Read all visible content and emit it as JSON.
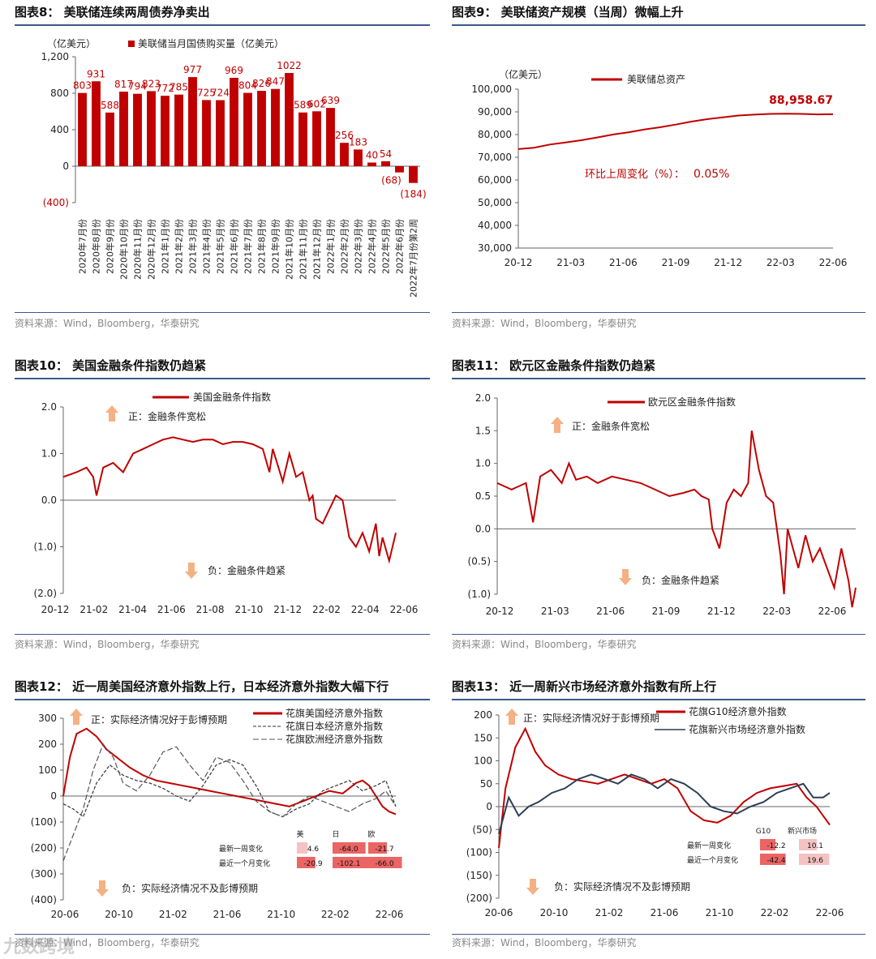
{
  "source": "资料来源：Wind，Bloomberg，华泰研究",
  "watermark": "九数跨境",
  "chart_data": [
    {
      "id": "c8",
      "type": "bar",
      "title": "图表8：  美联储连续两周债券净卖出",
      "ylabel": "（亿美元）",
      "legend": [
        "美联储当月国债购买量（亿美元）"
      ],
      "ylim": [
        -400,
        1200
      ],
      "yticks": [
        "1,200",
        "800",
        "400",
        "0",
        "(400)"
      ],
      "categories": [
        "2020年7月份",
        "2020年8月份",
        "2020年9月份",
        "2020年10月份",
        "2020年11月份",
        "2020年12月份",
        "2021年1月份",
        "2021年2月份",
        "2021年3月份",
        "2021年4月份",
        "2021年5月份",
        "2021年6月份",
        "2021年7月份",
        "2021年8月份",
        "2021年9月份",
        "2021年10月份",
        "2021年11月份",
        "2021年12月份",
        "2022年1月份",
        "2022年2月份",
        "2022年3月份",
        "2022年4月份",
        "2022年5月份",
        "2022年6月份",
        "2022年7月份第2周"
      ],
      "values": [
        803,
        931,
        588,
        817,
        794,
        823,
        772,
        785,
        977,
        725,
        724,
        969,
        804,
        826,
        847,
        1022,
        589,
        602,
        639,
        256,
        183,
        40,
        54,
        -68,
        -184
      ],
      "labels": [
        "803",
        "931",
        "588",
        "817",
        "794",
        "823",
        "772",
        "785",
        "977",
        "725",
        "724",
        "969",
        "804",
        "826",
        "847",
        "1022",
        "589",
        "602",
        "639",
        "256",
        "183",
        "40",
        "54",
        "(68)",
        "(184)"
      ],
      "color": "#c00000"
    },
    {
      "id": "c9",
      "type": "line",
      "title": "图表9：  美联储资产规模（当周）微幅上升",
      "ylabel": "（亿美元）",
      "legend": [
        "美联储总资产"
      ],
      "ylim": [
        30000,
        100000
      ],
      "yticks": [
        "100,000",
        "90,000",
        "80,000",
        "70,000",
        "60,000",
        "50,000",
        "40,000",
        "30,000"
      ],
      "xticks": [
        "20-12",
        "21-03",
        "21-06",
        "21-09",
        "21-12",
        "22-03",
        "22-06"
      ],
      "annotation": "环比上周变化（%）：",
      "annotation_value": "0.05%",
      "last_label": "88,958.67",
      "series": [
        {
          "name": "美联储总资产",
          "x": [
            0,
            0.05,
            0.1,
            0.15,
            0.2,
            0.25,
            0.3,
            0.35,
            0.4,
            0.45,
            0.5,
            0.55,
            0.6,
            0.65,
            0.7,
            0.75,
            0.8,
            0.85,
            0.9,
            0.95,
            1
          ],
          "values": [
            73600,
            74200,
            75600,
            76500,
            77500,
            78700,
            80000,
            81000,
            82200,
            83200,
            84400,
            85700,
            86800,
            87600,
            88400,
            88800,
            89100,
            89200,
            89100,
            88900,
            88959
          ]
        }
      ],
      "color": "#c00000"
    },
    {
      "id": "c10",
      "type": "line",
      "title": "图表10：  美国金融条件指数仍趋紧",
      "legend": [
        "美国金融条件指数"
      ],
      "ylim": [
        -2,
        2
      ],
      "yticks": [
        "2.0",
        "1.0",
        "0.0",
        "(1.0)",
        "(2.0)"
      ],
      "xticks": [
        "20-12",
        "21-02",
        "21-04",
        "21-06",
        "21-08",
        "21-10",
        "21-12",
        "22-02",
        "22-04",
        "22-06"
      ],
      "up_note": "正：金融条件宽松",
      "down_note": "负：金融条件趋紧",
      "series": [
        {
          "name": "美国金融条件指数",
          "x": [
            0,
            0.04,
            0.07,
            0.09,
            0.1,
            0.12,
            0.15,
            0.18,
            0.21,
            0.24,
            0.27,
            0.3,
            0.33,
            0.36,
            0.39,
            0.42,
            0.45,
            0.48,
            0.51,
            0.54,
            0.57,
            0.6,
            0.62,
            0.63,
            0.66,
            0.68,
            0.7,
            0.72,
            0.74,
            0.75,
            0.76,
            0.78,
            0.8,
            0.82,
            0.84,
            0.86,
            0.88,
            0.9,
            0.92,
            0.94,
            0.95,
            0.96,
            0.98,
            1
          ],
          "values": [
            0.5,
            0.6,
            0.7,
            0.5,
            0.1,
            0.7,
            0.8,
            0.6,
            1.0,
            1.1,
            1.2,
            1.3,
            1.35,
            1.3,
            1.25,
            1.3,
            1.3,
            1.2,
            1.25,
            1.25,
            1.2,
            1.1,
            0.6,
            1.1,
            0.4,
            1.0,
            0.5,
            0.6,
            0.0,
            0.1,
            -0.4,
            -0.5,
            -0.2,
            0.1,
            0.0,
            -0.8,
            -1.0,
            -0.7,
            -1.1,
            -0.5,
            -1.2,
            -0.8,
            -1.3,
            -0.7
          ]
        }
      ],
      "color": "#c00000"
    },
    {
      "id": "c11",
      "type": "line",
      "title": "图表11：  欧元区金融条件指数仍趋紧",
      "legend": [
        "欧元区金融条件指数"
      ],
      "ylim": [
        -1,
        2
      ],
      "yticks": [
        "2.0",
        "1.5",
        "1.0",
        "0.5",
        "0.0",
        "(0.5)",
        "(1.0)"
      ],
      "xticks": [
        "20-12",
        "21-03",
        "21-06",
        "21-09",
        "21-12",
        "22-03",
        "22-06"
      ],
      "up_note": "正：金融条件宽松",
      "down_note": "负：金融条件趋紧",
      "series": [
        {
          "name": "欧元区金融条件指数",
          "x": [
            0,
            0.04,
            0.08,
            0.1,
            0.12,
            0.15,
            0.18,
            0.2,
            0.22,
            0.25,
            0.28,
            0.32,
            0.36,
            0.4,
            0.44,
            0.48,
            0.52,
            0.55,
            0.57,
            0.59,
            0.6,
            0.62,
            0.64,
            0.66,
            0.68,
            0.7,
            0.71,
            0.73,
            0.75,
            0.77,
            0.79,
            0.8,
            0.81,
            0.82,
            0.84,
            0.86,
            0.88,
            0.9,
            0.92,
            0.94,
            0.96,
            0.98,
            0.99,
            1
          ],
          "values": [
            0.7,
            0.6,
            0.7,
            0.1,
            0.8,
            0.9,
            0.7,
            1.0,
            0.75,
            0.8,
            0.7,
            0.8,
            0.75,
            0.7,
            0.6,
            0.5,
            0.55,
            0.6,
            0.5,
            0.45,
            0.0,
            -0.3,
            0.4,
            0.6,
            0.5,
            0.7,
            1.5,
            0.9,
            0.5,
            0.4,
            -0.4,
            -1.0,
            0.0,
            -0.2,
            -0.6,
            -0.1,
            -0.5,
            -0.3,
            -0.6,
            -0.9,
            -0.3,
            -0.8,
            -1.2,
            -0.9
          ]
        }
      ],
      "color": "#c00000"
    },
    {
      "id": "c12",
      "type": "line",
      "title": "图表12：  近一周美国经济意外指数上行，日本经济意外指数大幅下行",
      "legend": [
        "花旗美国经济意外指数",
        "花旗日本经济意外指数",
        "花旗欧洲经济意外指数"
      ],
      "ylim": [
        -400,
        300
      ],
      "yticks": [
        "300",
        "200",
        "100",
        "0",
        "(100)",
        "(200)",
        "(300)",
        "(400)"
      ],
      "xticks": [
        "20-06",
        "20-10",
        "21-02",
        "21-06",
        "21-10",
        "22-02",
        "22-06"
      ],
      "up_note": "正：实际经济情况好于彭博预期",
      "down_note": "负：实际经济情况不及彭博预期",
      "table": {
        "headers": [
          "美",
          "日",
          "欧"
        ],
        "rows": [
          {
            "label": "最新一周变化",
            "values": [
              "4.6",
              "-64.0",
              "-21.7"
            ]
          },
          {
            "label": "最近一个月变化",
            "values": [
              "-20.9",
              "-102.1",
              "-66.0"
            ]
          }
        ]
      },
      "series": [
        {
          "name": "花旗美国经济意外指数",
          "style": "solid",
          "color": "#c00000",
          "x": [
            0,
            0.02,
            0.04,
            0.07,
            0.1,
            0.13,
            0.16,
            0.2,
            0.24,
            0.28,
            0.32,
            0.36,
            0.4,
            0.44,
            0.48,
            0.52,
            0.56,
            0.6,
            0.64,
            0.68,
            0.72,
            0.76,
            0.8,
            0.84,
            0.88,
            0.9,
            0.92,
            0.94,
            0.96,
            0.98,
            1
          ],
          "values": [
            0,
            150,
            240,
            260,
            230,
            180,
            150,
            110,
            80,
            60,
            50,
            40,
            30,
            20,
            10,
            0,
            -10,
            -20,
            -30,
            -40,
            -20,
            0,
            20,
            10,
            50,
            60,
            40,
            0,
            -40,
            -60,
            -70
          ]
        },
        {
          "name": "花旗日本经济意外指数",
          "style": "dashed",
          "color": "#333333",
          "x": [
            0,
            0.03,
            0.06,
            0.1,
            0.14,
            0.18,
            0.22,
            0.26,
            0.3,
            0.34,
            0.38,
            0.42,
            0.46,
            0.5,
            0.54,
            0.58,
            0.62,
            0.66,
            0.7,
            0.74,
            0.78,
            0.82,
            0.86,
            0.9,
            0.94,
            0.97,
            1
          ],
          "values": [
            -30,
            -50,
            -80,
            50,
            120,
            80,
            60,
            50,
            30,
            0,
            -20,
            40,
            120,
            140,
            120,
            40,
            -60,
            -80,
            -50,
            -30,
            20,
            40,
            60,
            20,
            40,
            60,
            -40
          ]
        },
        {
          "name": "花旗欧洲经济意外指数",
          "style": "longdash",
          "color": "#555555",
          "x": [
            0,
            0.03,
            0.06,
            0.09,
            0.12,
            0.15,
            0.18,
            0.22,
            0.26,
            0.3,
            0.34,
            0.38,
            0.42,
            0.46,
            0.5,
            0.54,
            0.58,
            0.62,
            0.66,
            0.7,
            0.74,
            0.78,
            0.82,
            0.86,
            0.9,
            0.94,
            0.97,
            1
          ],
          "values": [
            -250,
            -150,
            -50,
            100,
            200,
            150,
            50,
            20,
            80,
            170,
            190,
            120,
            60,
            150,
            130,
            60,
            -20,
            -60,
            -80,
            -30,
            0,
            -20,
            -40,
            -60,
            -30,
            -10,
            20,
            -40
          ]
        }
      ]
    },
    {
      "id": "c13",
      "type": "line",
      "title": "图表13：  近一周新兴市场经济意外指数有所上行",
      "legend": [
        "花旗G10经济意外指数",
        "花旗新兴市场经济意外指数"
      ],
      "ylim": [
        -200,
        200
      ],
      "yticks": [
        "200",
        "150",
        "100",
        "50",
        "0",
        "(50)",
        "(100)",
        "(150)",
        "(200)"
      ],
      "xticks": [
        "20-06",
        "20-10",
        "21-02",
        "21-06",
        "21-10",
        "22-02",
        "22-06"
      ],
      "up_note": "正：实际经济情况好于彭博预期",
      "down_note": "负：实际经济情况不及彭博预期",
      "table": {
        "headers": [
          "G10",
          "新兴市场"
        ],
        "rows": [
          {
            "label": "最新一周变化",
            "values": [
              "-12.2",
              "10.1"
            ]
          },
          {
            "label": "最近一个月变化",
            "values": [
              "-42.4",
              "19.6"
            ]
          }
        ]
      },
      "series": [
        {
          "name": "花旗G10经济意外指数",
          "style": "solid",
          "color": "#c00000",
          "x": [
            0,
            0.02,
            0.05,
            0.08,
            0.11,
            0.14,
            0.18,
            0.22,
            0.26,
            0.3,
            0.34,
            0.38,
            0.42,
            0.46,
            0.5,
            0.54,
            0.58,
            0.62,
            0.66,
            0.7,
            0.74,
            0.78,
            0.82,
            0.86,
            0.9,
            0.93,
            0.96,
            0.98,
            1
          ],
          "values": [
            -90,
            40,
            130,
            170,
            120,
            90,
            70,
            60,
            55,
            50,
            60,
            70,
            60,
            50,
            60,
            40,
            -10,
            -30,
            -35,
            -20,
            10,
            30,
            40,
            45,
            50,
            20,
            0,
            -20,
            -40
          ]
        },
        {
          "name": "花旗新兴市场经济意外指数",
          "style": "solid",
          "color": "#2c3e55",
          "x": [
            0,
            0.03,
            0.06,
            0.09,
            0.12,
            0.16,
            0.2,
            0.24,
            0.28,
            0.32,
            0.36,
            0.4,
            0.44,
            0.48,
            0.52,
            0.56,
            0.6,
            0.64,
            0.68,
            0.72,
            0.76,
            0.8,
            0.84,
            0.88,
            0.92,
            0.95,
            0.98,
            1
          ],
          "values": [
            -60,
            20,
            -20,
            0,
            10,
            30,
            40,
            60,
            70,
            60,
            50,
            70,
            60,
            40,
            60,
            50,
            30,
            0,
            -10,
            -15,
            0,
            10,
            30,
            40,
            50,
            20,
            20,
            30
          ]
        }
      ]
    }
  ]
}
